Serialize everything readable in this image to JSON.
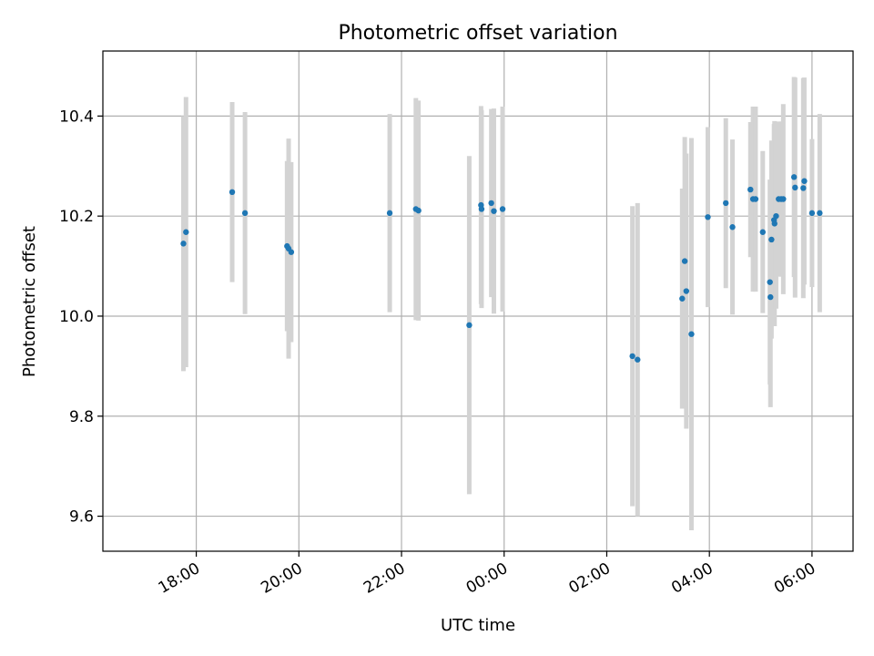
{
  "chart_data": {
    "type": "scatter",
    "title": "Photometric offset variation",
    "xlabel": "UTC time",
    "ylabel": "Photometric offset",
    "x_unit": "hours since 00:00 UTC",
    "xlim": [
      -7.82,
      6.8
    ],
    "ylim": [
      9.53,
      10.53
    ],
    "grid": true,
    "x_ticks": [
      {
        "value": -6,
        "label": "18:00"
      },
      {
        "value": -4,
        "label": "20:00"
      },
      {
        "value": -2,
        "label": "22:00"
      },
      {
        "value": 0,
        "label": "00:00"
      },
      {
        "value": 2,
        "label": "02:00"
      },
      {
        "value": 4,
        "label": "04:00"
      },
      {
        "value": 6,
        "label": "06:00"
      }
    ],
    "y_ticks": [
      {
        "value": 9.6,
        "label": "9.6"
      },
      {
        "value": 9.8,
        "label": "9.8"
      },
      {
        "value": 10.0,
        "label": "10.0"
      },
      {
        "value": 10.2,
        "label": "10.2"
      },
      {
        "value": 10.4,
        "label": "10.4"
      }
    ],
    "colors": {
      "points": "#1f77b4",
      "errorbars": "#d3d3d3",
      "grid": "#b0b0b0",
      "axes": "#000000"
    },
    "series": [
      {
        "name": "offset",
        "points": [
          {
            "x": -6.25,
            "y": 10.145,
            "err": 0.255
          },
          {
            "x": -6.2,
            "y": 10.168,
            "err": 0.27
          },
          {
            "x": -5.3,
            "y": 10.248,
            "err": 0.18
          },
          {
            "x": -5.05,
            "y": 10.206,
            "err": 0.202
          },
          {
            "x": -4.23,
            "y": 10.14,
            "err": 0.17
          },
          {
            "x": -4.2,
            "y": 10.135,
            "err": 0.22
          },
          {
            "x": -4.15,
            "y": 10.128,
            "err": 0.18
          },
          {
            "x": -2.23,
            "y": 10.206,
            "err": 0.198
          },
          {
            "x": -1.72,
            "y": 10.214,
            "err": 0.222
          },
          {
            "x": -1.67,
            "y": 10.211,
            "err": 0.22
          },
          {
            "x": -0.68,
            "y": 9.982,
            "err": 0.338
          },
          {
            "x": -0.45,
            "y": 10.222,
            "err": 0.198
          },
          {
            "x": -0.44,
            "y": 10.214,
            "err": 0.198
          },
          {
            "x": -0.25,
            "y": 10.226,
            "err": 0.188
          },
          {
            "x": -0.2,
            "y": 10.21,
            "err": 0.205
          },
          {
            "x": -0.03,
            "y": 10.214,
            "err": 0.205
          },
          {
            "x": 2.5,
            "y": 9.92,
            "err": 0.3
          },
          {
            "x": 2.6,
            "y": 9.913,
            "err": 0.313
          },
          {
            "x": 3.47,
            "y": 10.035,
            "err": 0.22
          },
          {
            "x": 3.52,
            "y": 10.11,
            "err": 0.248
          },
          {
            "x": 3.55,
            "y": 10.05,
            "err": 0.275
          },
          {
            "x": 3.65,
            "y": 9.964,
            "err": 0.392
          },
          {
            "x": 3.97,
            "y": 10.198,
            "err": 0.18
          },
          {
            "x": 4.32,
            "y": 10.226,
            "err": 0.17
          },
          {
            "x": 4.45,
            "y": 10.178,
            "err": 0.175
          },
          {
            "x": 4.8,
            "y": 10.253,
            "err": 0.135
          },
          {
            "x": 4.85,
            "y": 10.234,
            "err": 0.185
          },
          {
            "x": 4.9,
            "y": 10.234,
            "err": 0.185
          },
          {
            "x": 5.04,
            "y": 10.168,
            "err": 0.162
          },
          {
            "x": 5.18,
            "y": 10.068,
            "err": 0.205
          },
          {
            "x": 5.19,
            "y": 10.038,
            "err": 0.22
          },
          {
            "x": 5.21,
            "y": 10.153,
            "err": 0.198
          },
          {
            "x": 5.26,
            "y": 10.192,
            "err": 0.192
          },
          {
            "x": 5.27,
            "y": 10.185,
            "err": 0.205
          },
          {
            "x": 5.3,
            "y": 10.2,
            "err": 0.185
          },
          {
            "x": 5.35,
            "y": 10.234,
            "err": 0.155
          },
          {
            "x": 5.4,
            "y": 10.234,
            "err": 0.155
          },
          {
            "x": 5.44,
            "y": 10.234,
            "err": 0.19
          },
          {
            "x": 5.65,
            "y": 10.278,
            "err": 0.2
          },
          {
            "x": 5.67,
            "y": 10.257,
            "err": 0.22
          },
          {
            "x": 5.83,
            "y": 10.256,
            "err": 0.22
          },
          {
            "x": 5.85,
            "y": 10.27,
            "err": 0.207
          },
          {
            "x": 6.0,
            "y": 10.206,
            "err": 0.148
          },
          {
            "x": 6.15,
            "y": 10.206,
            "err": 0.198
          }
        ]
      }
    ]
  }
}
